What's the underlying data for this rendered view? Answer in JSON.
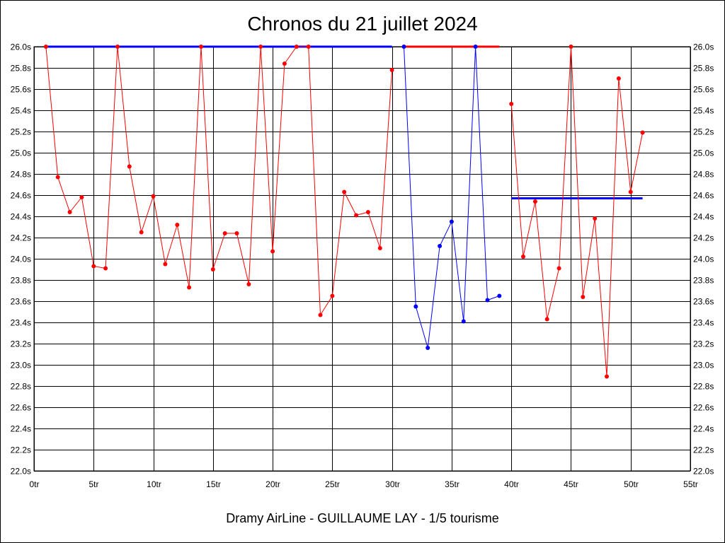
{
  "chart_data": {
    "type": "line",
    "title": "Chronos du 21 juillet 2024",
    "xlabel": "Dramy AirLine - GUILLAUME LAY - 1/5 tourisme",
    "ylabel": "",
    "xlim": [
      0,
      55
    ],
    "ylim": [
      22.0,
      26.0
    ],
    "x_ticks": [
      0,
      5,
      10,
      15,
      20,
      25,
      30,
      35,
      40,
      45,
      50,
      55
    ],
    "x_tick_labels": [
      "0tr",
      "5tr",
      "10tr",
      "15tr",
      "20tr",
      "25tr",
      "30tr",
      "35tr",
      "40tr",
      "45tr",
      "50tr",
      "55tr"
    ],
    "y_ticks": [
      22.0,
      22.2,
      22.4,
      22.6,
      22.8,
      23.0,
      23.2,
      23.4,
      23.6,
      23.8,
      24.0,
      24.2,
      24.4,
      24.6,
      24.8,
      25.0,
      25.2,
      25.4,
      25.6,
      25.8,
      26.0
    ],
    "y_tick_labels": [
      "22.0s",
      "22.2s",
      "22.4s",
      "22.6s",
      "22.8s",
      "23.0s",
      "23.2s",
      "23.4s",
      "23.6s",
      "23.8s",
      "24.0s",
      "24.2s",
      "24.4s",
      "24.6s",
      "24.8s",
      "25.0s",
      "25.2s",
      "25.4s",
      "25.6s",
      "25.8s",
      "26.0s"
    ],
    "grid": true,
    "legend": "none",
    "series": [
      {
        "color": "#ff0000",
        "x": [
          1,
          2,
          3,
          4,
          5,
          6,
          7,
          8,
          9,
          10,
          11,
          12,
          13,
          14,
          15,
          16,
          17,
          18,
          19,
          20,
          21,
          22,
          23,
          24,
          25,
          26,
          27,
          28,
          29,
          30
        ],
        "y": [
          26.0,
          24.77,
          24.44,
          24.58,
          23.93,
          23.91,
          26.0,
          24.87,
          24.25,
          24.59,
          23.95,
          24.32,
          23.73,
          26.0,
          23.9,
          24.24,
          24.24,
          23.76,
          26.0,
          24.07,
          25.84,
          26.0,
          26.0,
          23.47,
          23.65,
          24.63,
          24.41,
          24.44,
          24.1,
          25.78
        ]
      },
      {
        "color": "#0000ff",
        "x": [
          31,
          32,
          33,
          34,
          35,
          36,
          37,
          38,
          39
        ],
        "y": [
          26.0,
          23.55,
          23.16,
          24.12,
          24.35,
          23.41,
          26.0,
          23.61,
          23.65
        ]
      },
      {
        "color": "#ff0000",
        "x": [
          40,
          41,
          42,
          43,
          44,
          45,
          46,
          47,
          48,
          49,
          50,
          51
        ],
        "y": [
          25.46,
          24.02,
          24.54,
          23.43,
          23.91,
          26.0,
          23.64,
          24.38,
          22.89,
          25.7,
          24.63,
          25.19
        ]
      }
    ],
    "reference_lines": [
      {
        "color": "#0000ff",
        "x": [
          1,
          30
        ],
        "y": 26.0
      },
      {
        "color": "#ff0000",
        "x": [
          31,
          39
        ],
        "y": 26.0
      },
      {
        "color": "#0000ff",
        "x": [
          40,
          51
        ],
        "y": 24.57
      }
    ]
  }
}
